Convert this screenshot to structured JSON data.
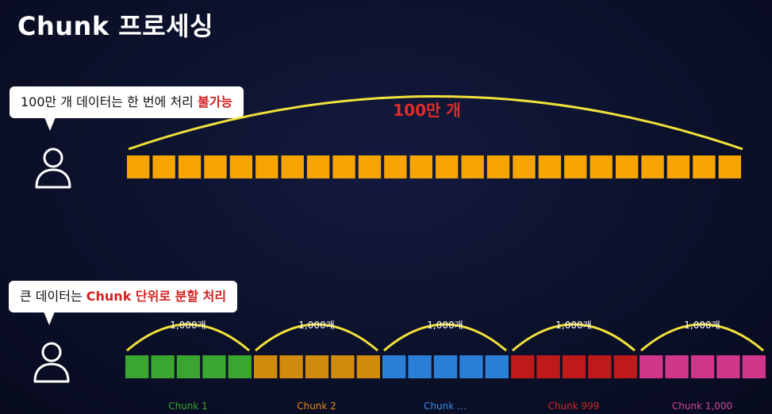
{
  "title": "Chunk 프로세싱",
  "bubble_top": {
    "text": "100만 개 데이터는 한 번에 처리 ",
    "highlight": "불가능"
  },
  "bubble_bottom": {
    "text": "큰 데이터는 ",
    "highlight": "Chunk 단위로 분할 처리"
  },
  "top_row": {
    "label": "100만 개",
    "block_count": 24,
    "color": "#f5a400"
  },
  "chunks": [
    {
      "label": "Chunk 1",
      "count_label": "1,000개",
      "color": "#3aa52f",
      "label_color": "#3aa52f",
      "blocks": 5
    },
    {
      "label": "Chunk 2",
      "count_label": "1,000개",
      "color": "#d08a0c",
      "label_color": "#e0891a",
      "blocks": 5
    },
    {
      "label": "Chunk …",
      "count_label": "1,000개",
      "color": "#2b7fd6",
      "label_color": "#3b8de0",
      "blocks": 5
    },
    {
      "label": "Chunk 999",
      "count_label": "1,000개",
      "color": "#bf1a1a",
      "label_color": "#d42828",
      "blocks": 5
    },
    {
      "label": "Chunk 1,000",
      "count_label": "1,000개",
      "color": "#d0378a",
      "label_color": "#d8459a",
      "blocks": 5
    }
  ],
  "colors": {
    "arc": "#f2e13a",
    "background": "#0c112b"
  },
  "icons": {
    "user": "person-outline-icon"
  }
}
